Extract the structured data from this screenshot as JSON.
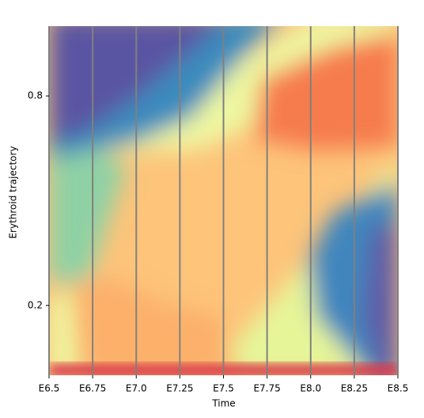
{
  "chart_data": {
    "type": "heatmap",
    "xlabel": "Time",
    "ylabel": "Erythroid trajectory",
    "xlim": [
      6.5,
      8.5
    ],
    "xticks": [
      {
        "value": 6.5,
        "label": "E6.5"
      },
      {
        "value": 6.75,
        "label": "E6.75"
      },
      {
        "value": 7.0,
        "label": "E7.0"
      },
      {
        "value": 7.25,
        "label": "E7.25"
      },
      {
        "value": 7.5,
        "label": "E7.5"
      },
      {
        "value": 7.75,
        "label": "E7.75"
      },
      {
        "value": 8.0,
        "label": "E8.0"
      },
      {
        "value": 8.25,
        "label": "E8.25"
      },
      {
        "value": 8.5,
        "label": "E8.5"
      }
    ],
    "ylim": [
      0,
      1
    ],
    "yticks": [
      0.2,
      0.8
    ],
    "grid": true,
    "grid_color": "#808080"
  }
}
